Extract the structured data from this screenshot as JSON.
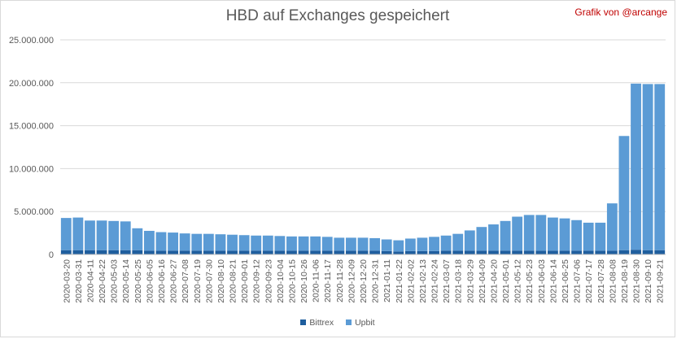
{
  "chart_title": "HBD auf Exchanges gespeichert",
  "credit": "Grafik von @arcange",
  "legend_items": [
    "Bittrex",
    "Upbit"
  ],
  "colors": {
    "bittrex": "#1f5e9e",
    "upbit": "#5b9bd5",
    "grid": "#d9d9d9",
    "text": "#595959",
    "credit": "#c00000"
  },
  "chart_data": {
    "type": "bar",
    "stacked": true,
    "title": "HBD auf Exchanges gespeichert",
    "xlabel": "",
    "ylabel": "",
    "ylim": [
      0,
      25000000
    ],
    "ytick_labels": [
      "0",
      "5.000.000",
      "10.000.000",
      "15.000.000",
      "20.000.000",
      "25.000.000"
    ],
    "grid": true,
    "legend": "bottom",
    "categories": [
      "2020-03-20",
      "2020-03-31",
      "2020-04-11",
      "2020-04-22",
      "2020-05-03",
      "2020-05-14",
      "2020-05-25",
      "2020-06-05",
      "2020-06-16",
      "2020-06-27",
      "2020-07-08",
      "2020-07-19",
      "2020-07-30",
      "2020-08-10",
      "2020-08-21",
      "2020-09-01",
      "2020-09-12",
      "2020-09-23",
      "2020-10-04",
      "2020-10-15",
      "2020-10-26",
      "2020-11-06",
      "2020-11-17",
      "2020-11-28",
      "2020-12-09",
      "2020-12-20",
      "2020-12-31",
      "2021-01-11",
      "2021-01-22",
      "2021-02-02",
      "2021-02-13",
      "2021-02-24",
      "2021-03-07",
      "2021-03-18",
      "2021-03-29",
      "2021-04-09",
      "2021-04-20",
      "2021-05-01",
      "2021-05-12",
      "2021-05-23",
      "2021-06-03",
      "2021-06-14",
      "2021-06-25",
      "2021-07-06",
      "2021-07-17",
      "2021-07-28",
      "2021-08-08",
      "2021-08-19",
      "2021-08-30",
      "2021-09-10",
      "2021-09-21"
    ],
    "series": [
      {
        "name": "Bittrex",
        "values": [
          500000,
          500000,
          500000,
          500000,
          500000,
          500000,
          500000,
          450000,
          450000,
          450000,
          450000,
          450000,
          450000,
          450000,
          450000,
          450000,
          450000,
          450000,
          450000,
          450000,
          450000,
          450000,
          450000,
          450000,
          450000,
          450000,
          450000,
          400000,
          350000,
          400000,
          400000,
          400000,
          450000,
          450000,
          450000,
          450000,
          450000,
          450000,
          450000,
          450000,
          450000,
          450000,
          450000,
          450000,
          450000,
          450000,
          450000,
          500000,
          550000,
          500000,
          500000
        ]
      },
      {
        "name": "Upbit",
        "values": [
          3750000,
          3800000,
          3450000,
          3450000,
          3400000,
          3350000,
          2550000,
          2300000,
          2150000,
          2100000,
          2000000,
          1950000,
          1950000,
          1900000,
          1850000,
          1800000,
          1750000,
          1750000,
          1700000,
          1650000,
          1650000,
          1650000,
          1600000,
          1500000,
          1500000,
          1500000,
          1450000,
          1350000,
          1300000,
          1450000,
          1550000,
          1650000,
          1750000,
          1950000,
          2350000,
          2750000,
          3050000,
          3450000,
          3950000,
          4150000,
          4150000,
          3850000,
          3750000,
          3550000,
          3250000,
          3250000,
          5500000,
          13300000,
          19350000,
          19350000,
          19350000
        ]
      }
    ]
  }
}
